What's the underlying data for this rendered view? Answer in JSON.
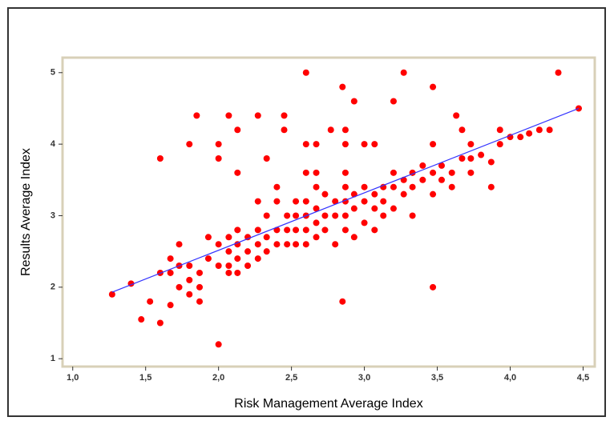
{
  "chart_data": {
    "type": "scatter",
    "x_label": "Risk Management Average Index",
    "y_label": "Results Average Index",
    "xlim": [
      0.93,
      4.58
    ],
    "ylim": [
      0.89,
      5.21
    ],
    "xticks": [
      {
        "value": 1.0,
        "label": "1,0"
      },
      {
        "value": 1.5,
        "label": "1,5"
      },
      {
        "value": 2.0,
        "label": "2,0"
      },
      {
        "value": 2.5,
        "label": "2,5"
      },
      {
        "value": 3.0,
        "label": "3,0"
      },
      {
        "value": 3.5,
        "label": "3,5"
      },
      {
        "value": 4.0,
        "label": "4,0"
      },
      {
        "value": 4.5,
        "label": "4,5"
      }
    ],
    "yticks": [
      1,
      2,
      3,
      4,
      5
    ],
    "series": [
      {
        "color": "#ff0000",
        "x": [
          2.6,
          3.27,
          4.33,
          2.85,
          3.47,
          1.85,
          2.07,
          2.27,
          2.45,
          2.93,
          3.2,
          3.63,
          1.6,
          1.8,
          2.0,
          2.0,
          2.13,
          2.45,
          2.6,
          2.67,
          2.77,
          2.87,
          2.87,
          3.0,
          3.07,
          2.13,
          2.33,
          2.6,
          2.67,
          2.87,
          3.47,
          3.67,
          3.33,
          3.47,
          2.85,
          2.0,
          1.47,
          1.6,
          1.53,
          1.27,
          1.4,
          1.67,
          1.6,
          1.67,
          1.67,
          1.73,
          1.73,
          1.73,
          1.8,
          1.8,
          1.8,
          1.87,
          1.87,
          1.87,
          1.93,
          1.93,
          2.0,
          2.0,
          2.07,
          2.07,
          2.07,
          2.07,
          2.13,
          2.13,
          2.13,
          2.13,
          2.2,
          2.2,
          2.2,
          2.27,
          2.27,
          2.27,
          2.27,
          2.33,
          2.33,
          2.33,
          2.4,
          2.4,
          2.4,
          2.4,
          2.47,
          2.47,
          2.47,
          2.53,
          2.53,
          2.53,
          2.53,
          2.6,
          2.6,
          2.6,
          2.6,
          2.67,
          2.67,
          2.67,
          2.67,
          2.73,
          2.73,
          2.73,
          2.8,
          2.8,
          2.8,
          2.87,
          2.87,
          2.87,
          2.87,
          2.93,
          2.93,
          2.93,
          3.0,
          3.0,
          3.0,
          3.07,
          3.07,
          3.07,
          3.13,
          3.13,
          3.13,
          3.2,
          3.2,
          3.2,
          3.27,
          3.27,
          3.33,
          3.33,
          3.4,
          3.4,
          3.47,
          3.47,
          3.53,
          3.53,
          3.6,
          3.6,
          3.67,
          3.73,
          3.73,
          3.73,
          3.8,
          3.87,
          3.87,
          3.93,
          3.93,
          4.0,
          4.07,
          4.13,
          4.2,
          4.27,
          4.47
        ],
        "values": [
          5,
          5,
          5,
          4.8,
          4.8,
          4.4,
          4.4,
          4.4,
          4.4,
          4.6,
          4.6,
          4.4,
          3.8,
          4,
          4,
          3.8,
          4.2,
          4.2,
          4,
          4,
          4.2,
          4.2,
          4,
          4,
          4,
          3.6,
          3.8,
          3.6,
          3.6,
          3.6,
          4,
          4.2,
          3,
          2,
          1.8,
          1.2,
          1.55,
          1.5,
          1.8,
          1.9,
          2.05,
          1.75,
          2.2,
          2.4,
          2.2,
          2.6,
          2.3,
          2.0,
          2.3,
          2.1,
          1.9,
          2.2,
          2.0,
          1.8,
          2.7,
          2.4,
          2.6,
          2.3,
          2.7,
          2.5,
          2.3,
          2.2,
          2.8,
          2.6,
          2.4,
          2.2,
          2.7,
          2.5,
          2.3,
          3.2,
          2.8,
          2.6,
          2.4,
          3.0,
          2.7,
          2.5,
          3.4,
          3.2,
          2.8,
          2.6,
          3.0,
          2.8,
          2.6,
          3.0,
          3.2,
          2.8,
          2.6,
          3.2,
          3.0,
          2.8,
          2.6,
          3.4,
          3.1,
          2.9,
          2.7,
          3.3,
          3.0,
          2.8,
          3.2,
          3.0,
          2.6,
          3.4,
          3.2,
          3.0,
          2.8,
          3.3,
          3.1,
          2.7,
          3.4,
          3.2,
          2.9,
          3.3,
          3.1,
          2.8,
          3.4,
          3.2,
          3.0,
          3.6,
          3.4,
          3.1,
          3.5,
          3.3,
          3.6,
          3.4,
          3.7,
          3.5,
          3.6,
          3.3,
          3.7,
          3.5,
          3.6,
          3.4,
          3.8,
          4.0,
          3.8,
          3.6,
          3.85,
          3.75,
          3.4,
          4.2,
          4.0,
          4.1,
          4.1,
          4.15,
          4.2,
          4.2,
          4.5
        ]
      }
    ],
    "trend_line": {
      "color": "#3333ff",
      "x": [
        1.27,
        4.47
      ],
      "values": [
        1.93,
        4.5
      ]
    }
  }
}
